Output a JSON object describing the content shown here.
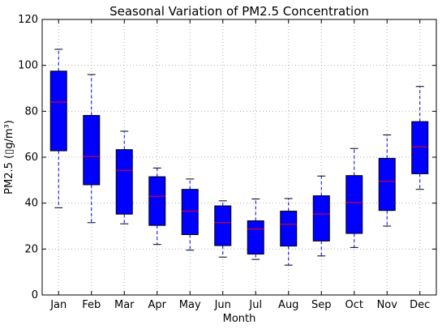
{
  "chart_data": {
    "type": "box",
    "title": "Seasonal Variation of PM2.5 Concentration",
    "xlabel": "Month",
    "ylabel": "PM2.5 (▯g/m³)",
    "ylim": [
      0,
      120
    ],
    "yticks": [
      0,
      20,
      40,
      60,
      80,
      100,
      120
    ],
    "categories": [
      "Jan",
      "Feb",
      "Mar",
      "Apr",
      "May",
      "Jun",
      "Jul",
      "Aug",
      "Sep",
      "Oct",
      "Nov",
      "Dec"
    ],
    "boxes": [
      {
        "whislo": 38,
        "q1": 62.8,
        "med": 84,
        "q3": 97.5,
        "whishi": 107
      },
      {
        "whislo": 31.5,
        "q1": 48,
        "med": 60.3,
        "q3": 78.2,
        "whishi": 96
      },
      {
        "whislo": 31,
        "q1": 35.2,
        "med": 54.3,
        "q3": 63.3,
        "whishi": 71.3
      },
      {
        "whislo": 22,
        "q1": 30.3,
        "med": 43,
        "q3": 51.5,
        "whishi": 55.3
      },
      {
        "whislo": 19.5,
        "q1": 26.3,
        "med": 36.5,
        "q3": 46,
        "whishi": 50.5
      },
      {
        "whislo": 16.5,
        "q1": 21.5,
        "med": 31.5,
        "q3": 38.8,
        "whishi": 41
      },
      {
        "whislo": 15.5,
        "q1": 17.8,
        "med": 28.7,
        "q3": 32.3,
        "whishi": 41.8
      },
      {
        "whislo": 13,
        "q1": 21.3,
        "med": 30.8,
        "q3": 36.5,
        "whishi": 42
      },
      {
        "whislo": 17,
        "q1": 23.5,
        "med": 35.3,
        "q3": 43.2,
        "whishi": 51.8
      },
      {
        "whislo": 20.7,
        "q1": 26.8,
        "med": 40.3,
        "q3": 52,
        "whishi": 63.8
      },
      {
        "whislo": 30,
        "q1": 36.8,
        "med": 49.5,
        "q3": 59.5,
        "whishi": 69.7
      },
      {
        "whislo": 46,
        "q1": 52.8,
        "med": 64.5,
        "q3": 75.5,
        "whishi": 90.8
      }
    ],
    "grid": true,
    "colors": {
      "box_fill": "#0000ff",
      "box_edge": "#000000",
      "median": "#ff0000",
      "whisker": "#0000ff",
      "cap": "#000000",
      "grid": "#b0b0b0"
    }
  }
}
